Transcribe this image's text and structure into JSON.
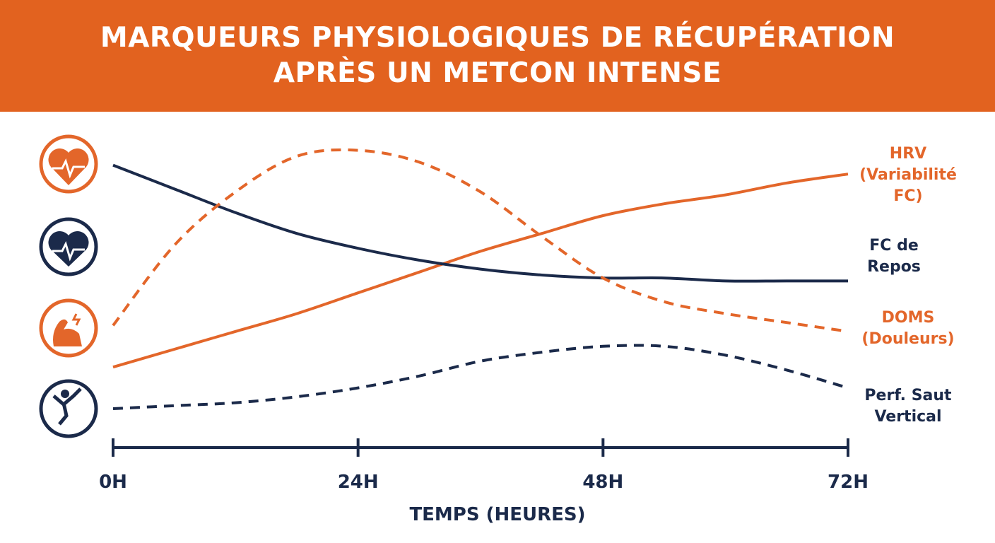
{
  "chart_data": {
    "type": "line",
    "title": "MARQUEURS PHYSIOLOGIQUES DE RÉCUPÉRATION APRÈS UN METCON INTENSE",
    "x_label": "TEMPS (HEURES)",
    "x": [
      0,
      6,
      12,
      18,
      24,
      30,
      36,
      42,
      48,
      54,
      60,
      66,
      72
    ],
    "xlim": [
      0,
      72
    ],
    "xticks": [
      {
        "value": 0,
        "label": "0H"
      },
      {
        "value": 24,
        "label": "24H"
      },
      {
        "value": 48,
        "label": "48H"
      },
      {
        "value": 72,
        "label": "72H"
      }
    ],
    "ylim": [
      0,
      100
    ],
    "grid": false,
    "series": [
      {
        "name": "HRV (Variabilité FC)",
        "color": "#e3662a",
        "dashed": false,
        "values": [
          24,
          30,
          36,
          42,
          49,
          56,
          63,
          69,
          75,
          79,
          82,
          86,
          89
        ]
      },
      {
        "name": "FC de Repos",
        "color": "#1b2a4a",
        "dashed": false,
        "values": [
          92,
          84,
          76,
          69,
          64,
          60,
          57,
          55,
          54,
          54,
          53,
          53,
          53
        ]
      },
      {
        "name": "DOMS (Douleurs)",
        "color": "#e3662a",
        "dashed": true,
        "values": [
          38,
          65,
          83,
          95,
          97,
          93,
          83,
          68,
          54,
          46,
          42,
          39,
          36
        ]
      },
      {
        "name": "Perf. Saut Vertical",
        "color": "#1b2a4a",
        "dashed": true,
        "values": [
          10,
          11,
          12,
          14,
          17,
          21,
          26,
          29,
          31,
          31,
          28,
          23,
          17
        ]
      }
    ]
  }
}
